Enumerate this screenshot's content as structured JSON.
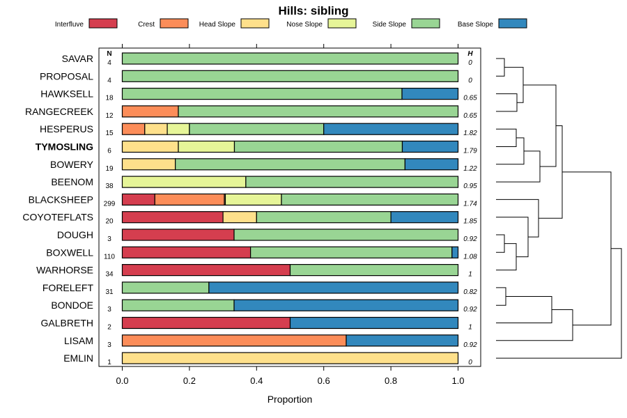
{
  "chart_data": {
    "type": "bar",
    "orientation": "horizontal",
    "stacked": true,
    "title": "Hills: sibling",
    "xlabel": "Proportion",
    "xlim": [
      0,
      1
    ],
    "xticks": [
      "0.0",
      "0.2",
      "0.4",
      "0.6",
      "0.8",
      "1.0"
    ],
    "n_header": "N",
    "h_header": "H",
    "legend": {
      "placement": "top",
      "items": [
        {
          "name": "Interfluve",
          "color": "#D53E4F"
        },
        {
          "name": "Crest",
          "color": "#FC8D59"
        },
        {
          "name": "Head Slope",
          "color": "#FEE08B"
        },
        {
          "name": "Nose Slope",
          "color": "#E6F598"
        },
        {
          "name": "Side Slope",
          "color": "#99D594"
        },
        {
          "name": "Base Slope",
          "color": "#3288BD"
        }
      ]
    },
    "highlight": "TYMOSLING",
    "rows": [
      {
        "name": "SAVAR",
        "n": "4",
        "h": "0",
        "values": [
          0,
          0,
          0,
          0,
          1.0,
          0
        ]
      },
      {
        "name": "PROPOSAL",
        "n": "4",
        "h": "0",
        "values": [
          0,
          0,
          0,
          0,
          1.0,
          0
        ]
      },
      {
        "name": "HAWKSELL",
        "n": "18",
        "h": "0.65",
        "values": [
          0,
          0,
          0,
          0,
          0.833,
          0.167
        ]
      },
      {
        "name": "RANGECREEK",
        "n": "12",
        "h": "0.65",
        "values": [
          0,
          0.167,
          0,
          0,
          0.833,
          0
        ]
      },
      {
        "name": "HESPERUS",
        "n": "15",
        "h": "1.82",
        "values": [
          0,
          0.067,
          0.067,
          0.066,
          0.4,
          0.4
        ]
      },
      {
        "name": "TYMOSLING",
        "n": "6",
        "h": "1.79",
        "values": [
          0,
          0,
          0.167,
          0.167,
          0.5,
          0.166
        ]
      },
      {
        "name": "BOWERY",
        "n": "19",
        "h": "1.22",
        "values": [
          0,
          0,
          0.158,
          0,
          0.684,
          0.158
        ]
      },
      {
        "name": "BEENOM",
        "n": "38",
        "h": "0.95",
        "values": [
          0,
          0,
          0,
          0.368,
          0.632,
          0
        ]
      },
      {
        "name": "BLACKSHEEP",
        "n": "299",
        "h": "1.74",
        "values": [
          0.097,
          0.207,
          0.003,
          0.167,
          0.526,
          0
        ]
      },
      {
        "name": "COYOTEFLATS",
        "n": "20",
        "h": "1.85",
        "values": [
          0.3,
          0,
          0.1,
          0,
          0.4,
          0.2
        ]
      },
      {
        "name": "DOUGH",
        "n": "3",
        "h": "0.92",
        "values": [
          0.333,
          0,
          0,
          0,
          0.667,
          0
        ]
      },
      {
        "name": "BOXWELL",
        "n": "110",
        "h": "1.08",
        "values": [
          0.382,
          0,
          0,
          0,
          0.6,
          0.018
        ]
      },
      {
        "name": "WARHORSE",
        "n": "34",
        "h": "1",
        "values": [
          0.5,
          0,
          0,
          0,
          0.5,
          0
        ]
      },
      {
        "name": "FORELEFT",
        "n": "31",
        "h": "0.82",
        "values": [
          0,
          0,
          0,
          0,
          0.258,
          0.742
        ]
      },
      {
        "name": "BONDOE",
        "n": "3",
        "h": "0.92",
        "values": [
          0,
          0,
          0,
          0,
          0.333,
          0.667
        ]
      },
      {
        "name": "GALBRETH",
        "n": "2",
        "h": "1",
        "values": [
          0.5,
          0,
          0,
          0,
          0,
          0.5
        ]
      },
      {
        "name": "LISAM",
        "n": "3",
        "h": "0.92",
        "values": [
          0,
          0.667,
          0,
          0,
          0,
          0.333
        ]
      },
      {
        "name": "EMLIN",
        "n": "1",
        "h": "0",
        "values": [
          0,
          0,
          1.0,
          0,
          0,
          0
        ]
      }
    ],
    "dendrogram": "hierarchical clustering of series by composition"
  }
}
